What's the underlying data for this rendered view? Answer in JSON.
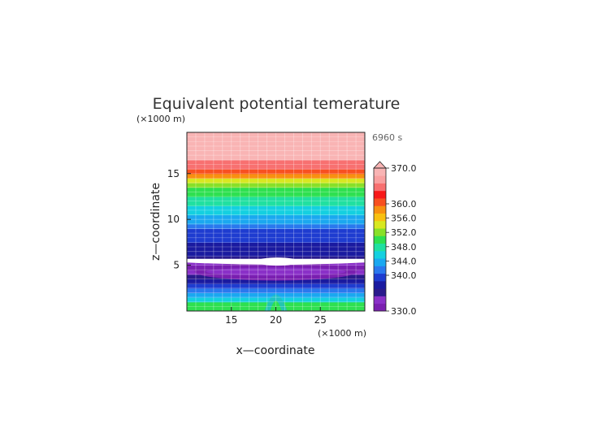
{
  "chart_data": {
    "type": "heatmap",
    "title": "Equivalent potential temerature",
    "xlabel": "x—coordinate",
    "ylabel": "z—coordinate",
    "x_unit": "(×1000 m)",
    "y_unit": "(×1000 m)",
    "time_label": "6960 s",
    "xlim": [
      10,
      30
    ],
    "ylim": [
      0,
      19.5
    ],
    "x_ticks": [
      15,
      20,
      25
    ],
    "y_ticks": [
      5,
      10,
      15
    ],
    "grid": true,
    "colorbar": {
      "min": 330.0,
      "max": 370.0,
      "tick_labels": [
        "370.0",
        "360.0",
        "356.0",
        "352.0",
        "348.0",
        "344.0",
        "340.0",
        "330.0"
      ],
      "tick_values": [
        370,
        360,
        356,
        352,
        348,
        344,
        340,
        330
      ],
      "colors": [
        "#7a1fb0",
        "#8a30c8",
        "#2a1a8c",
        "#1a1aa0",
        "#1e3cd0",
        "#2a78ee",
        "#1aa8f0",
        "#14d0e0",
        "#20e0a0",
        "#2ee050",
        "#88e028",
        "#d8e820",
        "#f8c010",
        "#f89010",
        "#f85020",
        "#f81818",
        "#f87070",
        "#f9a0a0",
        "#f9b4b4"
      ]
    },
    "profile": [
      {
        "z": 0.0,
        "theta_e": 350
      },
      {
        "z": 0.5,
        "theta_e": 349
      },
      {
        "z": 1.0,
        "theta_e": 346
      },
      {
        "z": 1.5,
        "theta_e": 343
      },
      {
        "z": 2.0,
        "theta_e": 341
      },
      {
        "z": 2.5,
        "theta_e": 339
      },
      {
        "z": 3.0,
        "theta_e": 337
      },
      {
        "z": 3.5,
        "theta_e": 336
      },
      {
        "z": 4.0,
        "theta_e": 334
      },
      {
        "z": 4.5,
        "theta_e": 331
      },
      {
        "z": 5.0,
        "theta_e": 333
      },
      {
        "z": 5.5,
        "theta_e": 336
      },
      {
        "z": 6.0,
        "theta_e": 337
      },
      {
        "z": 6.5,
        "theta_e": 337
      },
      {
        "z": 7.0,
        "theta_e": 338
      },
      {
        "z": 7.5,
        "theta_e": 339
      },
      {
        "z": 8.0,
        "theta_e": 339
      },
      {
        "z": 8.5,
        "theta_e": 340
      },
      {
        "z": 9.0,
        "theta_e": 341
      },
      {
        "z": 9.5,
        "theta_e": 343
      },
      {
        "z": 10.0,
        "theta_e": 344
      },
      {
        "z": 10.5,
        "theta_e": 345
      },
      {
        "z": 11.0,
        "theta_e": 346
      },
      {
        "z": 11.5,
        "theta_e": 347
      },
      {
        "z": 12.0,
        "theta_e": 348
      },
      {
        "z": 12.5,
        "theta_e": 349
      },
      {
        "z": 13.0,
        "theta_e": 351
      },
      {
        "z": 13.5,
        "theta_e": 353
      },
      {
        "z": 14.0,
        "theta_e": 355
      },
      {
        "z": 14.5,
        "theta_e": 358
      },
      {
        "z": 15.0,
        "theta_e": 361
      },
      {
        "z": 15.5,
        "theta_e": 364
      },
      {
        "z": 16.5,
        "theta_e": 370
      },
      {
        "z": 19.5,
        "theta_e": 371
      }
    ]
  }
}
